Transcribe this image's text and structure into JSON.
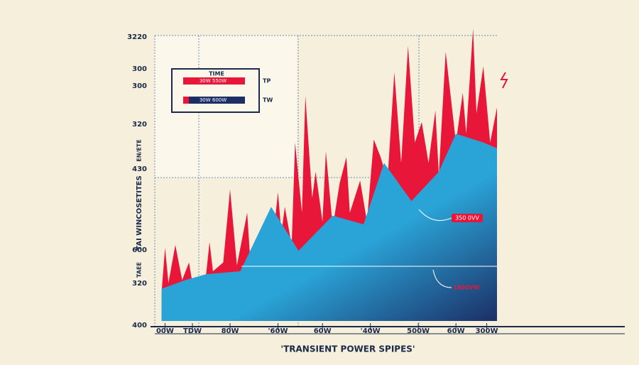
{
  "chart_data": {
    "type": "area",
    "title": "'TRANSIENT POWER SPIPES'",
    "y_axis_label": "TAI WINCOSETITES",
    "side_labels": [
      "EN/ETE",
      "TAEE"
    ],
    "y_labels": [
      "3220",
      "300",
      "300",
      "320",
      "430",
      "600",
      "320",
      "400"
    ],
    "xlim": [
      0,
      100
    ],
    "ylim": [
      0,
      100
    ],
    "xticks": [
      {
        "value": 3,
        "label": "00W"
      },
      {
        "value": 11,
        "label": "TDW"
      },
      {
        "value": 22,
        "label": "80W"
      },
      {
        "value": 36,
        "label": "'60W"
      },
      {
        "value": 49,
        "label": "60W"
      },
      {
        "value": 63,
        "label": "'40W"
      },
      {
        "value": 77,
        "label": "500W"
      },
      {
        "value": 88,
        "label": "60W"
      },
      {
        "value": 97,
        "label": "300W"
      }
    ],
    "series": [
      {
        "name": "TP",
        "color": "#e8173a",
        "x": [
          2,
          3,
          4,
          6,
          8,
          10,
          11,
          15,
          16,
          17,
          20,
          22,
          24,
          27,
          28,
          34,
          36,
          37,
          38,
          40,
          41,
          43,
          44,
          46,
          47,
          49,
          50,
          52,
          54,
          56,
          57,
          60,
          62,
          64,
          66,
          68,
          70,
          72,
          74,
          76,
          78,
          80,
          82,
          83,
          85,
          88,
          90,
          91,
          93,
          94,
          96,
          98,
          100
        ],
        "values": [
          10,
          25,
          13,
          26,
          14,
          20,
          13,
          16,
          27,
          17,
          20,
          45,
          19,
          37,
          19,
          22,
          44,
          30,
          39,
          26,
          61,
          37,
          77,
          42,
          51,
          34,
          58,
          32,
          47,
          56,
          37,
          48,
          34,
          62,
          56,
          48,
          85,
          54,
          94,
          61,
          68,
          54,
          72,
          50,
          92,
          61,
          78,
          64,
          100,
          71,
          87,
          61,
          73
        ]
      },
      {
        "name": "TW",
        "color": "#2aa3d6",
        "x": [
          2,
          9,
          15,
          25,
          34,
          42,
          52,
          61,
          67,
          75,
          83,
          88,
          96,
          100
        ],
        "values": [
          11,
          14,
          16,
          17,
          39,
          24,
          36,
          33,
          54,
          41,
          51,
          64,
          61,
          59
        ]
      }
    ],
    "legend": {
      "title": "TIME",
      "items": [
        {
          "text": "30W 550W",
          "label": "TP"
        },
        {
          "text": "30W 600W",
          "label": "TW"
        }
      ]
    },
    "annotations": [
      "350 0VV",
      "1800VW"
    ]
  }
}
